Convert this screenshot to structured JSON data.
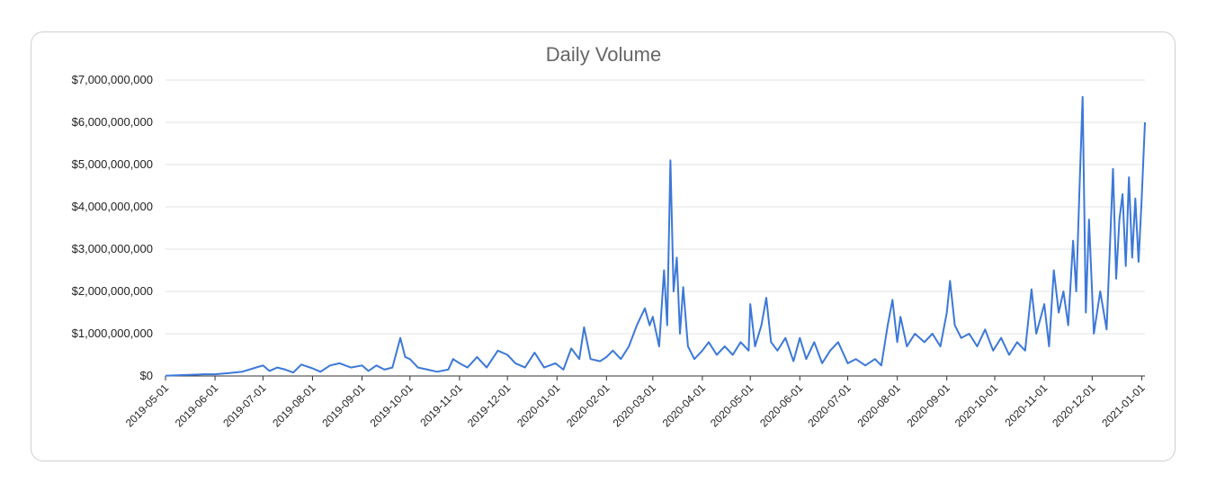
{
  "chart_data": {
    "type": "line",
    "title": "Daily Volume",
    "xlabel": "",
    "ylabel": "",
    "ylim": [
      0,
      7000000000
    ],
    "xlim": [
      "2019-05-01",
      "2021-01-03"
    ],
    "y_ticks": [
      0,
      1000000000,
      2000000000,
      3000000000,
      4000000000,
      5000000000,
      6000000000,
      7000000000
    ],
    "y_tick_labels": [
      "$0",
      "$1,000,000,000",
      "$2,000,000,000",
      "$3,000,000,000",
      "$4,000,000,000",
      "$5,000,000,000",
      "$6,000,000,000",
      "$7,000,000,000"
    ],
    "x_tick_labels": [
      "2019-05-01",
      "2019-06-01",
      "2019-07-01",
      "2019-08-01",
      "2019-09-01",
      "2019-10-01",
      "2019-11-01",
      "2019-12-01",
      "2020-01-01",
      "2020-02-01",
      "2020-03-01",
      "2020-04-01",
      "2020-05-01",
      "2020-06-01",
      "2020-07-01",
      "2020-08-01",
      "2020-09-01",
      "2020-10-01",
      "2020-11-01",
      "2020-12-01",
      "2021-01-01"
    ],
    "grid": true,
    "line_color": "#3c78d8",
    "series": [
      {
        "points": [
          [
            "2019-05-01",
            5000000
          ],
          [
            "2019-05-10",
            20000000
          ],
          [
            "2019-05-18",
            30000000
          ],
          [
            "2019-05-25",
            40000000
          ],
          [
            "2019-06-01",
            40000000
          ],
          [
            "2019-06-10",
            70000000
          ],
          [
            "2019-06-18",
            100000000
          ],
          [
            "2019-06-25",
            180000000
          ],
          [
            "2019-07-01",
            250000000
          ],
          [
            "2019-07-05",
            120000000
          ],
          [
            "2019-07-10",
            200000000
          ],
          [
            "2019-07-15",
            150000000
          ],
          [
            "2019-07-20",
            80000000
          ],
          [
            "2019-07-25",
            270000000
          ],
          [
            "2019-08-01",
            180000000
          ],
          [
            "2019-08-06",
            100000000
          ],
          [
            "2019-08-12",
            250000000
          ],
          [
            "2019-08-18",
            300000000
          ],
          [
            "2019-08-25",
            200000000
          ],
          [
            "2019-09-01",
            250000000
          ],
          [
            "2019-09-05",
            120000000
          ],
          [
            "2019-09-10",
            250000000
          ],
          [
            "2019-09-15",
            150000000
          ],
          [
            "2019-09-20",
            200000000
          ],
          [
            "2019-09-25",
            900000000
          ],
          [
            "2019-09-28",
            450000000
          ],
          [
            "2019-10-01",
            400000000
          ],
          [
            "2019-10-06",
            200000000
          ],
          [
            "2019-10-12",
            150000000
          ],
          [
            "2019-10-18",
            100000000
          ],
          [
            "2019-10-25",
            150000000
          ],
          [
            "2019-10-28",
            400000000
          ],
          [
            "2019-11-01",
            300000000
          ],
          [
            "2019-11-06",
            200000000
          ],
          [
            "2019-11-12",
            450000000
          ],
          [
            "2019-11-18",
            200000000
          ],
          [
            "2019-11-25",
            600000000
          ],
          [
            "2019-12-01",
            500000000
          ],
          [
            "2019-12-06",
            300000000
          ],
          [
            "2019-12-12",
            200000000
          ],
          [
            "2019-12-18",
            550000000
          ],
          [
            "2019-12-24",
            200000000
          ],
          [
            "2019-12-31",
            300000000
          ],
          [
            "2020-01-05",
            150000000
          ],
          [
            "2020-01-10",
            650000000
          ],
          [
            "2020-01-15",
            400000000
          ],
          [
            "2020-01-18",
            1150000000
          ],
          [
            "2020-01-22",
            400000000
          ],
          [
            "2020-01-28",
            350000000
          ],
          [
            "2020-02-01",
            450000000
          ],
          [
            "2020-02-05",
            600000000
          ],
          [
            "2020-02-10",
            400000000
          ],
          [
            "2020-02-15",
            700000000
          ],
          [
            "2020-02-20",
            1200000000
          ],
          [
            "2020-02-25",
            1600000000
          ],
          [
            "2020-02-28",
            1200000000
          ],
          [
            "2020-03-01",
            1400000000
          ],
          [
            "2020-03-05",
            700000000
          ],
          [
            "2020-03-08",
            2500000000
          ],
          [
            "2020-03-10",
            1200000000
          ],
          [
            "2020-03-12",
            5100000000
          ],
          [
            "2020-03-14",
            2000000000
          ],
          [
            "2020-03-16",
            2800000000
          ],
          [
            "2020-03-18",
            1000000000
          ],
          [
            "2020-03-20",
            2100000000
          ],
          [
            "2020-03-23",
            700000000
          ],
          [
            "2020-03-27",
            400000000
          ],
          [
            "2020-04-01",
            600000000
          ],
          [
            "2020-04-05",
            800000000
          ],
          [
            "2020-04-10",
            500000000
          ],
          [
            "2020-04-15",
            700000000
          ],
          [
            "2020-04-20",
            500000000
          ],
          [
            "2020-04-25",
            800000000
          ],
          [
            "2020-04-30",
            600000000
          ],
          [
            "2020-05-01",
            1700000000
          ],
          [
            "2020-05-04",
            700000000
          ],
          [
            "2020-05-08",
            1200000000
          ],
          [
            "2020-05-11",
            1850000000
          ],
          [
            "2020-05-14",
            800000000
          ],
          [
            "2020-05-18",
            600000000
          ],
          [
            "2020-05-23",
            900000000
          ],
          [
            "2020-05-28",
            350000000
          ],
          [
            "2020-06-01",
            900000000
          ],
          [
            "2020-06-05",
            400000000
          ],
          [
            "2020-06-10",
            800000000
          ],
          [
            "2020-06-15",
            300000000
          ],
          [
            "2020-06-20",
            600000000
          ],
          [
            "2020-06-25",
            800000000
          ],
          [
            "2020-07-01",
            300000000
          ],
          [
            "2020-07-06",
            400000000
          ],
          [
            "2020-07-12",
            250000000
          ],
          [
            "2020-07-18",
            400000000
          ],
          [
            "2020-07-22",
            250000000
          ],
          [
            "2020-07-26",
            1200000000
          ],
          [
            "2020-07-29",
            1800000000
          ],
          [
            "2020-08-01",
            800000000
          ],
          [
            "2020-08-03",
            1400000000
          ],
          [
            "2020-08-07",
            700000000
          ],
          [
            "2020-08-12",
            1000000000
          ],
          [
            "2020-08-18",
            800000000
          ],
          [
            "2020-08-23",
            1000000000
          ],
          [
            "2020-08-28",
            700000000
          ],
          [
            "2020-09-01",
            1500000000
          ],
          [
            "2020-09-03",
            2250000000
          ],
          [
            "2020-09-06",
            1200000000
          ],
          [
            "2020-09-10",
            900000000
          ],
          [
            "2020-09-15",
            1000000000
          ],
          [
            "2020-09-20",
            700000000
          ],
          [
            "2020-09-25",
            1100000000
          ],
          [
            "2020-09-30",
            600000000
          ],
          [
            "2020-10-05",
            900000000
          ],
          [
            "2020-10-10",
            500000000
          ],
          [
            "2020-10-15",
            800000000
          ],
          [
            "2020-10-20",
            600000000
          ],
          [
            "2020-10-24",
            2050000000
          ],
          [
            "2020-10-27",
            1000000000
          ],
          [
            "2020-11-01",
            1700000000
          ],
          [
            "2020-11-04",
            700000000
          ],
          [
            "2020-11-07",
            2500000000
          ],
          [
            "2020-11-10",
            1500000000
          ],
          [
            "2020-11-13",
            2000000000
          ],
          [
            "2020-11-16",
            1200000000
          ],
          [
            "2020-11-19",
            3200000000
          ],
          [
            "2020-11-21",
            2000000000
          ],
          [
            "2020-11-23",
            4400000000
          ],
          [
            "2020-11-25",
            6600000000
          ],
          [
            "2020-11-27",
            1500000000
          ],
          [
            "2020-11-29",
            3700000000
          ],
          [
            "2020-12-02",
            1000000000
          ],
          [
            "2020-12-06",
            2000000000
          ],
          [
            "2020-12-10",
            1100000000
          ],
          [
            "2020-12-14",
            4900000000
          ],
          [
            "2020-12-16",
            2300000000
          ],
          [
            "2020-12-18",
            3700000000
          ],
          [
            "2020-12-20",
            4300000000
          ],
          [
            "2020-12-22",
            2600000000
          ],
          [
            "2020-12-24",
            4700000000
          ],
          [
            "2020-12-26",
            2800000000
          ],
          [
            "2020-12-28",
            4200000000
          ],
          [
            "2020-12-30",
            2700000000
          ],
          [
            "2021-01-01",
            4200000000
          ],
          [
            "2021-01-03",
            6000000000
          ]
        ]
      }
    ]
  }
}
